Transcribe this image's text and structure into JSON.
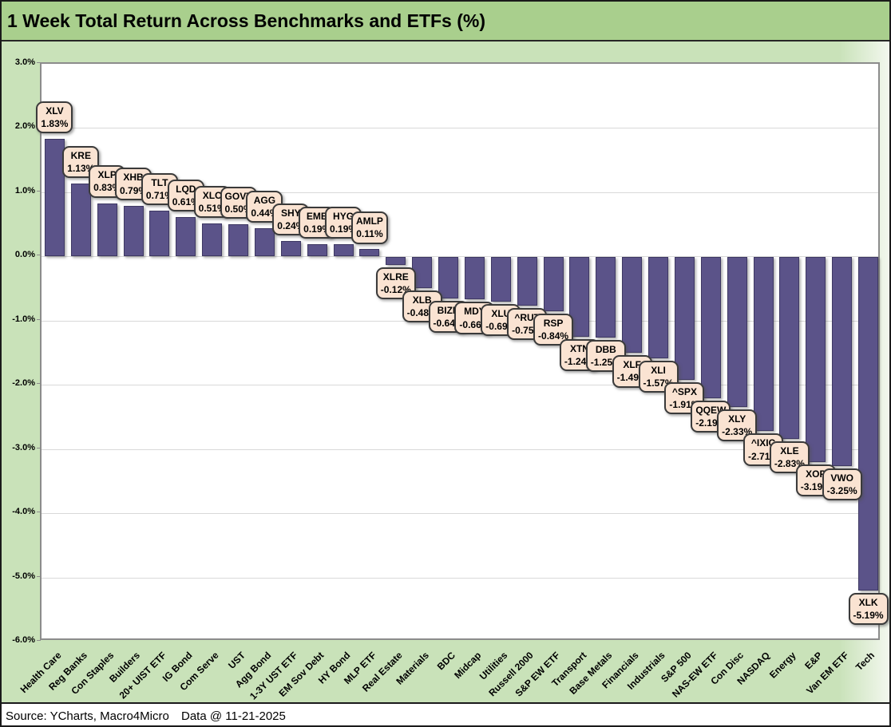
{
  "title": "1 Week Total Return Across Benchmarks and ETFs (%)",
  "footer": {
    "source": "Source: YCharts, Macro4Micro",
    "data_date": "Data @ 11-21-2025"
  },
  "colors": {
    "title_bg": "#a9cf8d",
    "chart_bg": "#c9e2b9",
    "plot_bg": "#ffffff",
    "plot_border": "#8c8c8c",
    "bar_fill": "#5b5389",
    "bar_border": "#3e3863",
    "callout_bg": "#fae3d2",
    "callout_border": "#3a3a3a",
    "gridline": "#d9d9d9"
  },
  "chart_data": {
    "type": "bar",
    "title": "1 Week Total Return Across Benchmarks and ETFs (%)",
    "xlabel": "",
    "ylabel": "",
    "ylim": [
      -6,
      3
    ],
    "grid": true,
    "legend": "none",
    "yticks": [
      3,
      2,
      1,
      0,
      -1,
      -2,
      -3,
      -4,
      -5,
      -6
    ],
    "ytick_labels": [
      "3.0%",
      "2.0%",
      "1.0%",
      "0.0%",
      "-1.0%",
      "-2.0%",
      "-3.0%",
      "-4.0%",
      "-5.0%",
      "-6.0%"
    ],
    "points": [
      {
        "category": "Health Care",
        "ticker": "XLV",
        "value": 1.83,
        "display": "1.83%"
      },
      {
        "category": "Reg Banks",
        "ticker": "KRE",
        "value": 1.13,
        "display": "1.13%"
      },
      {
        "category": "Con Staples",
        "ticker": "XLP",
        "value": 0.83,
        "display": "0.83%"
      },
      {
        "category": "Builders",
        "ticker": "XHB",
        "value": 0.79,
        "display": "0.79%"
      },
      {
        "category": "20+ UIST ETF",
        "ticker": "TLT",
        "value": 0.71,
        "display": "0.71%"
      },
      {
        "category": "IG Bond",
        "ticker": "LQD",
        "value": 0.61,
        "display": "0.61%"
      },
      {
        "category": "Com Serve",
        "ticker": "XLC",
        "value": 0.51,
        "display": "0.51%"
      },
      {
        "category": "UST",
        "ticker": "GOVT",
        "value": 0.5,
        "display": "0.50%"
      },
      {
        "category": "Agg Bond",
        "ticker": "AGG",
        "value": 0.44,
        "display": "0.44%"
      },
      {
        "category": "1-3Y UST ETF",
        "ticker": "SHY",
        "value": 0.24,
        "display": "0.24%"
      },
      {
        "category": "EM Sov Debt",
        "ticker": "EMB",
        "value": 0.19,
        "display": "0.19%"
      },
      {
        "category": "HY Bond",
        "ticker": "HYG",
        "value": 0.19,
        "display": "0.19%"
      },
      {
        "category": "MLP ETF",
        "ticker": "AMLP",
        "value": 0.11,
        "display": "0.11%"
      },
      {
        "category": "Real Estate",
        "ticker": "XLRE",
        "value": -0.12,
        "display": "-0.12%"
      },
      {
        "category": "Materials",
        "ticker": "XLB",
        "value": -0.48,
        "display": "-0.48%"
      },
      {
        "category": "BDC",
        "ticker": "BIZD",
        "value": -0.64,
        "display": "-0.64%"
      },
      {
        "category": "Midcap",
        "ticker": "MDY",
        "value": -0.66,
        "display": "-0.66%"
      },
      {
        "category": "Utilities",
        "ticker": "XLU",
        "value": -0.69,
        "display": "-0.69%"
      },
      {
        "category": "Russell 2000",
        "ticker": "^RUT",
        "value": -0.75,
        "display": "-0.75%"
      },
      {
        "category": "S&P EW ETF",
        "ticker": "RSP",
        "value": -0.84,
        "display": "-0.84%"
      },
      {
        "category": "Transport",
        "ticker": "XTN",
        "value": -1.24,
        "display": "-1.24%"
      },
      {
        "category": "Base Metals",
        "ticker": "DBB",
        "value": -1.25,
        "display": "-1.25%"
      },
      {
        "category": "Financials",
        "ticker": "XLF",
        "value": -1.49,
        "display": "-1.49%"
      },
      {
        "category": "Industrials",
        "ticker": "XLI",
        "value": -1.57,
        "display": "-1.57%"
      },
      {
        "category": "S&P 500",
        "ticker": "^SPX",
        "value": -1.91,
        "display": "-1.91%"
      },
      {
        "category": "NAS-EW ETF",
        "ticker": "QQEW",
        "value": -2.19,
        "display": "-2.19%"
      },
      {
        "category": "Con Disc",
        "ticker": "XLY",
        "value": -2.33,
        "display": "-2.33%"
      },
      {
        "category": "NASDAQ",
        "ticker": "^IXIC",
        "value": -2.71,
        "display": "-2.71%"
      },
      {
        "category": "Energy",
        "ticker": "XLE",
        "value": -2.83,
        "display": "-2.83%"
      },
      {
        "category": "E&P",
        "ticker": "XOP",
        "value": -3.19,
        "display": "-3.19%"
      },
      {
        "category": "Van EM ETF",
        "ticker": "VWO",
        "value": -3.25,
        "display": "-3.25%"
      },
      {
        "category": "Tech",
        "ticker": "XLK",
        "value": -5.19,
        "display": "-5.19%"
      }
    ]
  }
}
